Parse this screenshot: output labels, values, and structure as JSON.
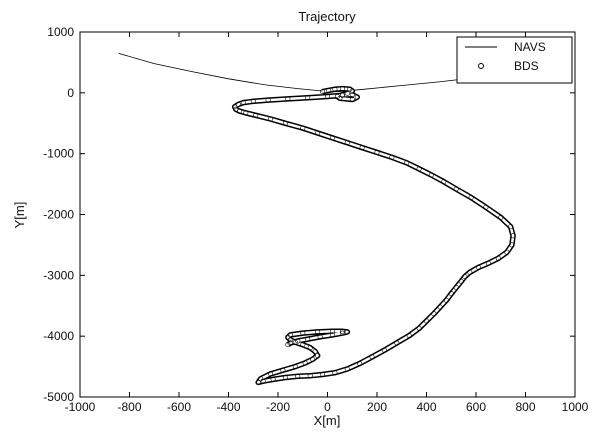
{
  "chart_data": {
    "type": "line",
    "title": "Trajectory",
    "xlabel": "X[m]",
    "ylabel": "Y[m]",
    "xlim": [
      -1000,
      1000
    ],
    "ylim": [
      -5000,
      1000
    ],
    "xticks": [
      -1000,
      -800,
      -600,
      -400,
      -200,
      0,
      200,
      400,
      600,
      800,
      1000
    ],
    "yticks": [
      1000,
      0,
      -1000,
      -2000,
      -3000,
      -4000,
      -5000
    ],
    "grid": false,
    "legend_position": "top-right",
    "series": [
      {
        "name": "NAVS",
        "style": "line",
        "color": "#000000",
        "x": [
          -845,
          -700,
          -550,
          -400,
          -250,
          -120,
          -20,
          10,
          60,
          150,
          300,
          450,
          600,
          720,
          800
        ],
        "y": [
          650,
          480,
          350,
          230,
          130,
          70,
          30,
          15,
          25,
          60,
          120,
          180,
          250,
          300,
          330
        ]
      },
      {
        "name": "BDS",
        "style": "markers",
        "color": "#000000",
        "x": [
          -20,
          5,
          30,
          60,
          90,
          100,
          80,
          60,
          40,
          50,
          100,
          120,
          100,
          60,
          0,
          -80,
          -160,
          -240,
          -300,
          -340,
          -360,
          -375,
          -370,
          -355,
          -330,
          -290,
          -230,
          -170,
          -100,
          -40,
          20,
          80,
          140,
          200,
          260,
          320,
          370,
          420,
          470,
          520,
          580,
          640,
          700,
          740,
          750,
          745,
          725,
          690,
          650,
          610,
          575,
          555,
          540,
          520,
          500,
          480,
          455,
          430,
          400,
          370,
          330,
          280,
          230,
          180,
          130,
          80,
          30,
          -20,
          -70,
          -120,
          -170,
          -220,
          -260,
          -280,
          -270,
          -230,
          -180,
          -130,
          -90,
          -60,
          -40,
          -50,
          -70,
          -100,
          -130,
          -150,
          -160,
          -150,
          -100,
          -40,
          20,
          60,
          80,
          60,
          20,
          -30,
          -80,
          -120,
          -150,
          -160
        ],
        "y": [
          20,
          40,
          60,
          70,
          60,
          30,
          -10,
          -30,
          -60,
          -90,
          -110,
          -70,
          -30,
          -40,
          -60,
          -80,
          -100,
          -120,
          -140,
          -160,
          -190,
          -230,
          -270,
          -300,
          -330,
          -370,
          -430,
          -500,
          -580,
          -660,
          -740,
          -820,
          -900,
          -980,
          -1060,
          -1150,
          -1250,
          -1350,
          -1460,
          -1580,
          -1720,
          -1880,
          -2050,
          -2200,
          -2350,
          -2500,
          -2620,
          -2720,
          -2800,
          -2870,
          -2950,
          -3020,
          -3100,
          -3200,
          -3300,
          -3410,
          -3520,
          -3630,
          -3750,
          -3870,
          -3990,
          -4110,
          -4230,
          -4340,
          -4450,
          -4540,
          -4600,
          -4630,
          -4650,
          -4660,
          -4680,
          -4710,
          -4740,
          -4760,
          -4700,
          -4620,
          -4560,
          -4500,
          -4440,
          -4380,
          -4320,
          -4250,
          -4190,
          -4140,
          -4100,
          -4060,
          -4020,
          -3980,
          -3950,
          -3930,
          -3920,
          -3920,
          -3930,
          -3950,
          -3980,
          -4010,
          -4050,
          -4080,
          -4110,
          -4140
        ]
      }
    ]
  },
  "colors": {
    "axis": "#000000",
    "background": "#ffffff",
    "plot_background": "#ffffff"
  }
}
